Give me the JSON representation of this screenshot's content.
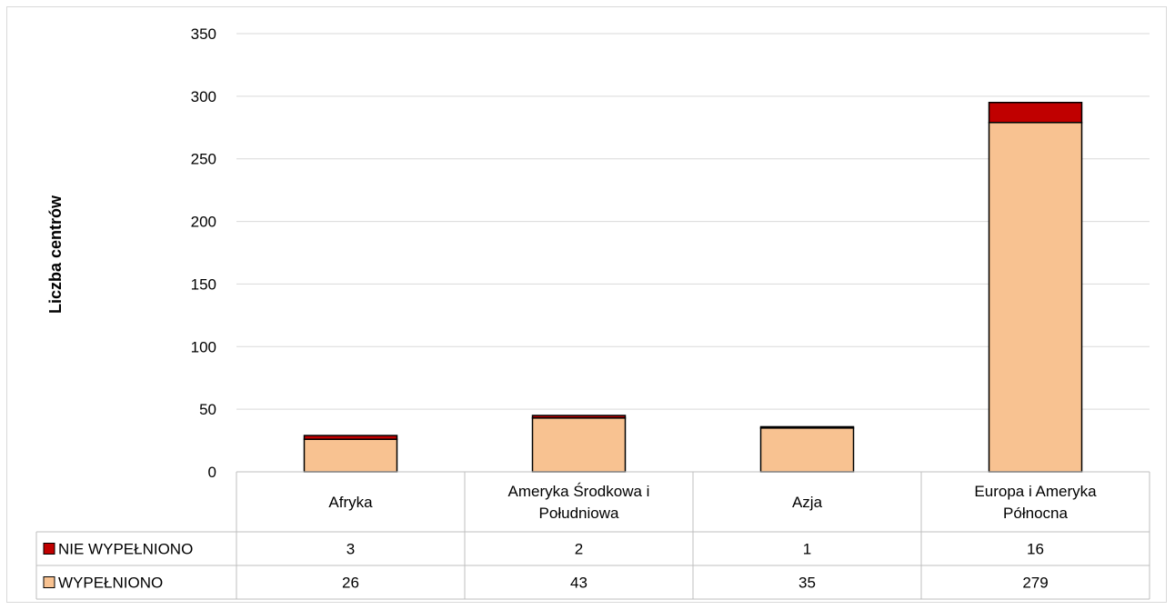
{
  "chart_data": {
    "type": "bar",
    "stacked": true,
    "title": "",
    "xlabel": "",
    "ylabel": "Liczba centrów",
    "ylim": [
      0,
      350
    ],
    "yticks": [
      0,
      50,
      100,
      150,
      200,
      250,
      300,
      350
    ],
    "grid": true,
    "legend_placement": "data-table-left",
    "categories": [
      [
        "Afryka"
      ],
      [
        "Ameryka Środkowa i",
        "Południowa"
      ],
      [
        "Azja"
      ],
      [
        "Europa i Ameryka",
        "Północna"
      ]
    ],
    "series": [
      {
        "name": "WYPEŁNIONO",
        "values": [
          26,
          43,
          35,
          279
        ],
        "color": "#f8c291"
      },
      {
        "name": "NIE WYPEŁNIONO",
        "values": [
          3,
          2,
          1,
          16
        ],
        "color": "#c00000"
      }
    ],
    "table_rows_order": [
      "NIE WYPEŁNIONO",
      "WYPEŁNIONO"
    ]
  }
}
